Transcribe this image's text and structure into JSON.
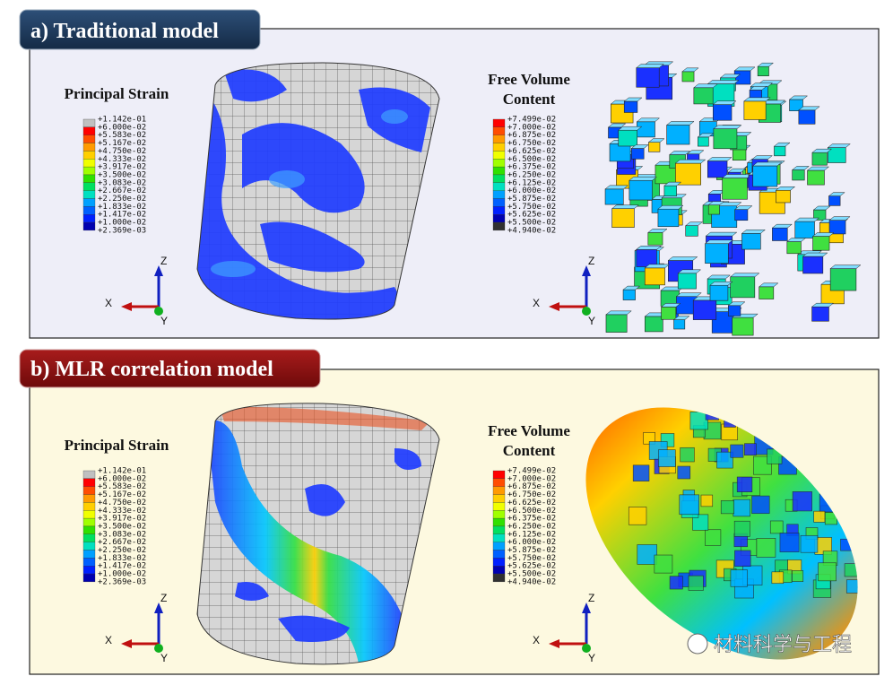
{
  "panels": [
    {
      "title": "a) Traditional model",
      "strain_legend": {
        "title": "Principal Strain",
        "labels": [
          "+1.142e-01",
          "+6.000e-02",
          "+5.583e-02",
          "+5.167e-02",
          "+4.750e-02",
          "+4.333e-02",
          "+3.917e-02",
          "+3.500e-02",
          "+3.083e-02",
          "+2.667e-02",
          "+2.250e-02",
          "+1.833e-02",
          "+1.417e-02",
          "+1.000e-02",
          "+2.369e-03"
        ]
      },
      "volume_legend": {
        "title": [
          "Free Volume",
          "Content"
        ],
        "labels": [
          "+7.499e-02",
          "+7.000e-02",
          "+6.875e-02",
          "+6.750e-02",
          "+6.625e-02",
          "+6.500e-02",
          "+6.375e-02",
          "+6.250e-02",
          "+6.125e-02",
          "+6.000e-02",
          "+5.875e-02",
          "+5.750e-02",
          "+5.625e-02",
          "+5.500e-02",
          "+4.940e-02"
        ]
      },
      "triads": [
        {
          "x": "X",
          "y": "Y",
          "z": "Z"
        },
        {
          "x": "X",
          "y": "Y",
          "z": "Z"
        }
      ]
    },
    {
      "title": "b) MLR correlation model",
      "strain_legend": {
        "title": "Principal Strain",
        "labels": [
          "+1.142e-01",
          "+6.000e-02",
          "+5.583e-02",
          "+5.167e-02",
          "+4.750e-02",
          "+4.333e-02",
          "+3.917e-02",
          "+3.500e-02",
          "+3.083e-02",
          "+2.667e-02",
          "+2.250e-02",
          "+1.833e-02",
          "+1.417e-02",
          "+1.000e-02",
          "+2.369e-03"
        ]
      },
      "volume_legend": {
        "title": [
          "Free Volume",
          "Content"
        ],
        "labels": [
          "+7.499e-02",
          "+7.000e-02",
          "+6.875e-02",
          "+6.750e-02",
          "+6.625e-02",
          "+6.500e-02",
          "+6.375e-02",
          "+6.250e-02",
          "+6.125e-02",
          "+6.000e-02",
          "+5.875e-02",
          "+5.750e-02",
          "+5.625e-02",
          "+5.500e-02",
          "+4.940e-02"
        ]
      },
      "triads": [
        {
          "x": "X",
          "y": "Y",
          "z": "Z"
        },
        {
          "x": "X",
          "y": "Y",
          "z": "Z"
        }
      ]
    }
  ],
  "watermark": "材料科学与工程"
}
